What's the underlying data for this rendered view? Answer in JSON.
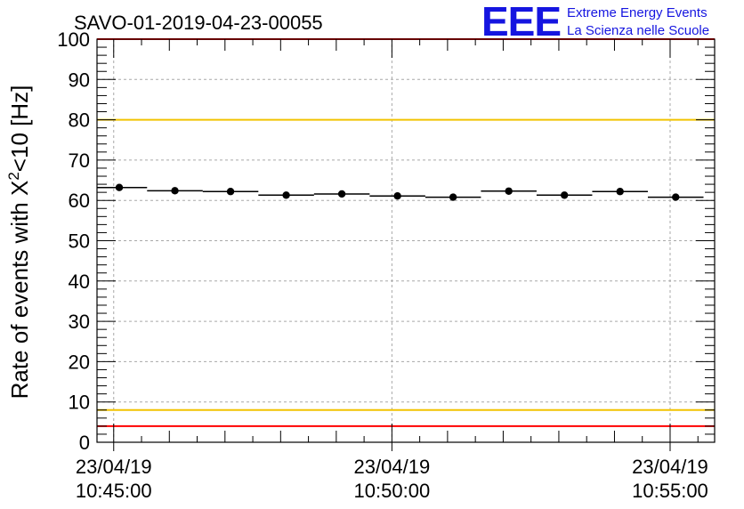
{
  "chart_data": {
    "type": "scatter",
    "title": "SAVO-01-2019-04-23-00055",
    "ylabel_main": "Rate of events with X",
    "ylabel_sup": "2",
    "ylabel_tail": "<10 [Hz]",
    "xlabel": "",
    "ylim": [
      0,
      100
    ],
    "y_ticks": [
      "0",
      "10",
      "20",
      "30",
      "40",
      "50",
      "60",
      "70",
      "80",
      "90",
      "100"
    ],
    "xlim_minutes": [
      -0.3,
      10.8
    ],
    "x_tick_positions_minutes": [
      0,
      5,
      10
    ],
    "x_tick_labels": [
      {
        "date": "23/04/19",
        "time": "10:45:00"
      },
      {
        "date": "23/04/19",
        "time": "10:50:00"
      },
      {
        "date": "23/04/19",
        "time": "10:55:00"
      }
    ],
    "bin_width_minutes": 1.0,
    "series": [
      {
        "name": "rate",
        "x_minutes": [
          0.1,
          1.1,
          2.1,
          3.1,
          4.1,
          5.1,
          6.1,
          7.1,
          8.1,
          9.1,
          10.1
        ],
        "values": [
          63.2,
          62.4,
          62.2,
          61.3,
          61.6,
          61.1,
          60.8,
          62.3,
          61.3,
          62.2,
          60.8
        ],
        "errors": [
          0.8,
          0.8,
          0.8,
          0.8,
          0.8,
          0.8,
          0.8,
          0.8,
          0.8,
          0.8,
          0.8
        ]
      }
    ],
    "reference_lines": [
      {
        "name": "upper-red-line",
        "value": 100,
        "color": "#ff0000"
      },
      {
        "name": "upper-yellow-line",
        "value": 80,
        "color": "#f2c300"
      },
      {
        "name": "lower-yellow-line",
        "value": 8,
        "color": "#f2c300"
      },
      {
        "name": "lower-red-line",
        "value": 4,
        "color": "#ff0000"
      }
    ],
    "grid": true
  },
  "logo": {
    "mark": "EEE",
    "line1": "Extreme Energy Events",
    "line2": "La Scienza nelle Scuole",
    "color": "#1515e0"
  }
}
